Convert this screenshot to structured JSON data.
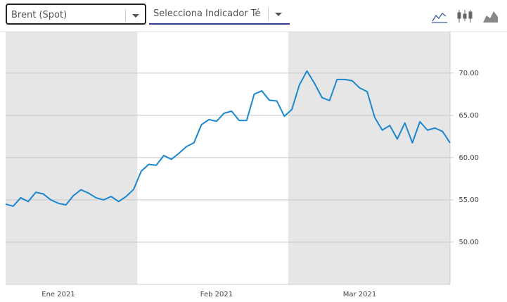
{
  "controls": {
    "symbol": "Brent (Spot)",
    "indicator": "Selecciona Indicador Té"
  },
  "chart_data": {
    "type": "line",
    "categories": [
      null,
      null,
      null,
      null,
      null,
      null,
      null,
      "Ene 2021",
      null,
      null,
      null,
      null,
      null,
      null,
      null,
      null,
      null,
      null,
      null,
      null,
      null,
      null,
      null,
      null,
      null,
      null,
      null,
      null,
      "Feb 2021",
      null,
      null,
      null,
      null,
      null,
      null,
      null,
      null,
      null,
      null,
      null,
      null,
      null,
      null,
      null,
      null,
      null,
      null,
      "Mar 2021",
      null,
      null,
      null,
      null,
      null,
      null,
      null,
      null,
      null,
      null,
      null,
      null
    ],
    "values": [
      54.5,
      54.25,
      55.25,
      54.8,
      55.9,
      55.7,
      55.0,
      54.6,
      54.4,
      55.5,
      56.2,
      55.8,
      55.25,
      55.0,
      55.4,
      54.8,
      55.4,
      56.25,
      58.4,
      59.2,
      59.1,
      60.25,
      59.8,
      60.5,
      61.3,
      61.75,
      63.9,
      64.5,
      64.3,
      65.25,
      65.5,
      64.4,
      64.4,
      67.5,
      67.9,
      66.8,
      66.7,
      64.9,
      65.7,
      68.6,
      70.25,
      68.8,
      67.1,
      66.75,
      69.25,
      69.25,
      69.1,
      68.25,
      67.8,
      64.75,
      63.25,
      63.8,
      62.2,
      64.1,
      61.75,
      64.25,
      63.25,
      63.5,
      63.1,
      61.75
    ],
    "color": "#1a87d0",
    "ylim": [
      45,
      74.9
    ],
    "yticks": [
      {
        "value": 50,
        "label": "50.00"
      },
      {
        "value": 55,
        "label": "55.00"
      },
      {
        "value": 60,
        "label": "60.00"
      },
      {
        "value": 65,
        "label": "65.00"
      },
      {
        "value": 70,
        "label": "70.00"
      }
    ],
    "grid": true
  }
}
